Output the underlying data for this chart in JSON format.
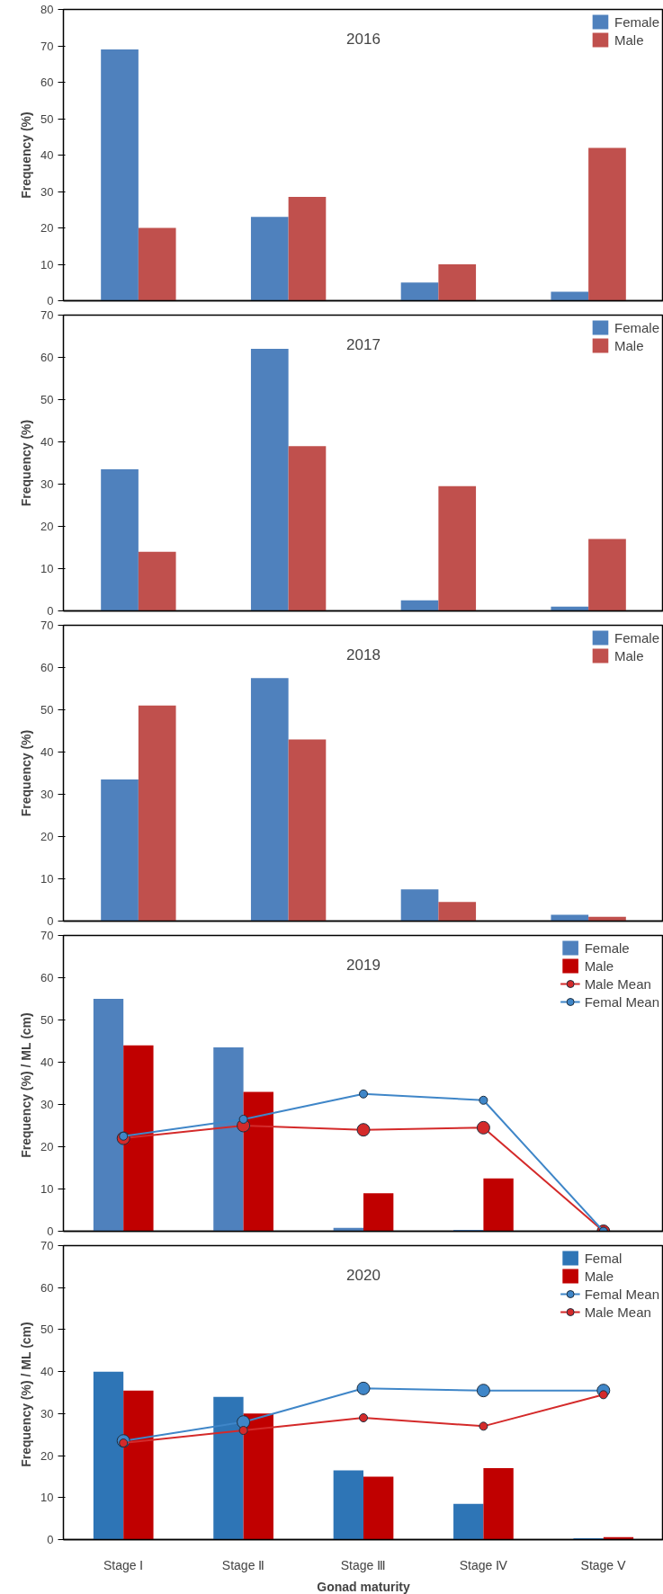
{
  "chart_data": [
    {
      "type": "bar",
      "title": "2016",
      "ylabel": "Frequency (%)",
      "categories": [
        null,
        null,
        null,
        null
      ],
      "ylim": [
        0,
        80
      ],
      "yticks": [
        0,
        10,
        20,
        30,
        40,
        50,
        60,
        70,
        80
      ],
      "tick_labels": "y",
      "grid": false,
      "legend": "top right",
      "series": [
        {
          "name": "Female",
          "color": "#4f81bd",
          "values": [
            69,
            23,
            5,
            2.5
          ]
        },
        {
          "name": "Male",
          "color": "#c0504d",
          "values": [
            20,
            28.5,
            10,
            42
          ]
        }
      ]
    },
    {
      "type": "bar",
      "title": "2017",
      "ylabel": "Frequency (%)",
      "categories": [
        null,
        null,
        null,
        null
      ],
      "ylim": [
        0,
        70
      ],
      "yticks": [
        0,
        10,
        20,
        30,
        40,
        50,
        60,
        70
      ],
      "tick_labels": "y",
      "grid": false,
      "legend": "top right",
      "series": [
        {
          "name": "Female",
          "color": "#4f81bd",
          "values": [
            33.5,
            62,
            2.5,
            1
          ]
        },
        {
          "name": "Male",
          "color": "#c0504d",
          "values": [
            14,
            39,
            29.5,
            17
          ]
        }
      ]
    },
    {
      "type": "bar",
      "title": "2018",
      "ylabel": "Frequency (%)",
      "categories": [
        null,
        null,
        null,
        null
      ],
      "ylim": [
        0,
        70
      ],
      "yticks": [
        0,
        10,
        20,
        30,
        40,
        50,
        60,
        70
      ],
      "tick_labels": "y",
      "grid": false,
      "legend": "top right",
      "series": [
        {
          "name": "Female",
          "color": "#4f81bd",
          "values": [
            33.5,
            57.5,
            7.5,
            1.5
          ]
        },
        {
          "name": "Male",
          "color": "#c0504d",
          "values": [
            51,
            43,
            4.5,
            1
          ]
        }
      ]
    },
    {
      "type": "bar",
      "title": "2019",
      "ylabel": "Frequency (%)  / ML (cm)",
      "categories": [
        null,
        null,
        null,
        null,
        null
      ],
      "ylim": [
        0,
        70
      ],
      "yticks": [
        0,
        10,
        20,
        30,
        40,
        50,
        60,
        70
      ],
      "tick_labels": "y",
      "grid": false,
      "legend": "top right",
      "series": [
        {
          "name": "Female",
          "color": "#4f81bd",
          "values": [
            55,
            43.5,
            0.8,
            0.3,
            null
          ]
        },
        {
          "name": "Male",
          "color": "#c00000",
          "values": [
            44,
            33,
            9,
            12.5,
            null
          ]
        },
        {
          "name": "Male Mean",
          "type": "line",
          "marker": "circle",
          "color": "#d42a2a",
          "values": [
            22,
            25,
            24,
            24.5,
            0
          ]
        },
        {
          "name": "Femal Mean",
          "type": "line",
          "marker": "circle",
          "color": "#3f86c8",
          "values": [
            22.5,
            26.5,
            32.5,
            31,
            0
          ]
        }
      ]
    },
    {
      "type": "bar",
      "title": "2020",
      "ylabel": "Frequency (%)  / ML (cm)",
      "xlabel": "Gonad maturity",
      "categories": [
        "Stage Ⅰ",
        "Stage Ⅱ",
        "Stage Ⅲ",
        "Stage Ⅳ",
        "Stage Ⅴ"
      ],
      "ylim": [
        0,
        70
      ],
      "yticks": [
        0,
        10,
        20,
        30,
        40,
        50,
        60,
        70
      ],
      "grid": false,
      "legend": "top right",
      "series": [
        {
          "name": "Femal",
          "color": "#2e75b6",
          "values": [
            40,
            34,
            16.5,
            8.5,
            0.3
          ]
        },
        {
          "name": "Male",
          "color": "#c00000",
          "values": [
            35.5,
            30,
            15,
            17,
            0.6
          ]
        },
        {
          "name": "Femal Mean",
          "type": "line",
          "marker": "circle",
          "color": "#3f86c8",
          "values": [
            23.5,
            28,
            36,
            35.5,
            35.5
          ]
        },
        {
          "name": "Male Mean",
          "type": "line",
          "marker": "circle",
          "color": "#d42a2a",
          "values": [
            23,
            26,
            29,
            27,
            34.5
          ]
        }
      ]
    }
  ]
}
